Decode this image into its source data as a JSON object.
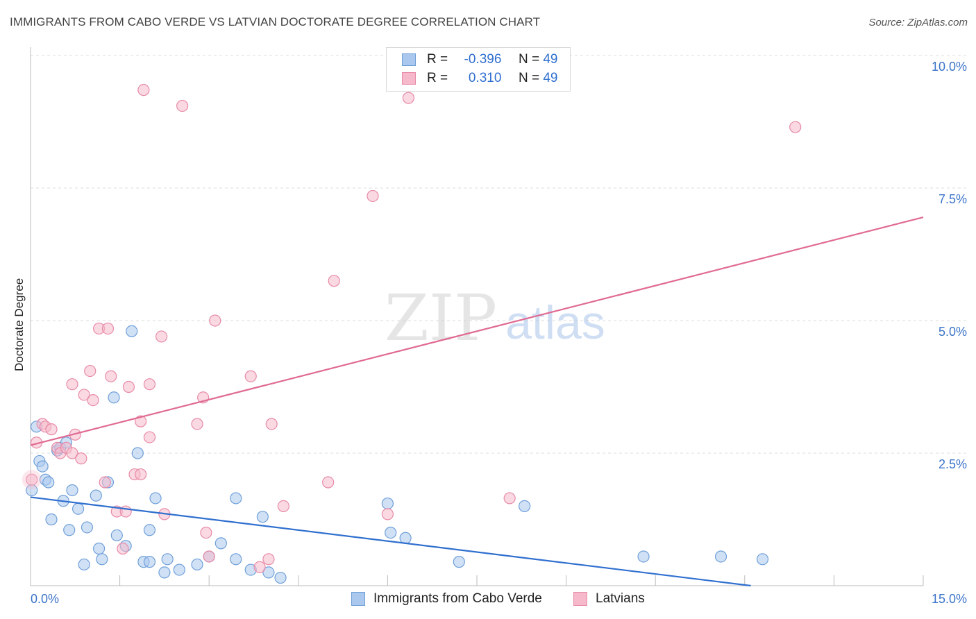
{
  "header": {
    "title": "IMMIGRANTS FROM CABO VERDE VS LATVIAN DOCTORATE DEGREE CORRELATION CHART",
    "source": "Source: ZipAtlas.com"
  },
  "watermark": {
    "zip": "ZIP",
    "atlas": "atlas"
  },
  "legend": {
    "rows": [
      {
        "r_label": "R =",
        "r_value": "-0.396",
        "n_label": "N =",
        "n_value": "49"
      },
      {
        "r_label": "R =",
        "r_value": "0.310",
        "n_label": "N =",
        "n_value": "49"
      }
    ]
  },
  "colors": {
    "blue_fill": "#aac8ee",
    "blue_stroke": "#6f9fd8",
    "blue_line": "#2f6fcf",
    "pink_fill": "#f5b9cb",
    "pink_stroke": "#e88aa7",
    "pink_line": "#e06a92",
    "tick_text": "#3b74c9",
    "grid": "#dcdcdc"
  },
  "chart_data": {
    "type": "scatter",
    "title": "IMMIGRANTS FROM CABO VERDE VS LATVIAN DOCTORATE DEGREE CORRELATION CHART",
    "xlabel": "",
    "ylabel": "Doctorate Degree",
    "xlim": [
      0,
      15
    ],
    "ylim": [
      0,
      10
    ],
    "x_tick_labels": [
      "0.0%",
      "15.0%"
    ],
    "y_ticks": [
      2.5,
      5.0,
      7.5,
      10.0
    ],
    "y_tick_labels": [
      "2.5%",
      "5.0%",
      "7.5%",
      "10.0%"
    ],
    "grid": true,
    "legend_position": "top-center",
    "series": [
      {
        "name": "Immigrants from Cabo Verde",
        "color": "blue",
        "r": -0.396,
        "n": 49,
        "trend": {
          "x": [
            0,
            15
          ],
          "y": [
            1.67,
            -0.4
          ]
        },
        "points": [
          [
            0.02,
            1.8
          ],
          [
            0.1,
            3.0
          ],
          [
            0.15,
            2.35
          ],
          [
            0.2,
            2.25
          ],
          [
            0.25,
            2.0
          ],
          [
            0.3,
            1.95
          ],
          [
            0.35,
            1.25
          ],
          [
            0.45,
            2.55
          ],
          [
            0.5,
            2.6
          ],
          [
            0.55,
            1.6
          ],
          [
            0.6,
            2.7
          ],
          [
            0.65,
            1.05
          ],
          [
            0.7,
            1.8
          ],
          [
            0.8,
            1.45
          ],
          [
            0.9,
            0.4
          ],
          [
            0.95,
            1.1
          ],
          [
            1.1,
            1.7
          ],
          [
            1.15,
            0.7
          ],
          [
            1.2,
            0.5
          ],
          [
            1.3,
            1.95
          ],
          [
            1.4,
            3.55
          ],
          [
            1.45,
            0.95
          ],
          [
            1.6,
            0.75
          ],
          [
            1.7,
            4.8
          ],
          [
            1.8,
            2.5
          ],
          [
            1.9,
            0.45
          ],
          [
            2.0,
            0.45
          ],
          [
            2.0,
            1.05
          ],
          [
            2.1,
            1.65
          ],
          [
            2.25,
            0.25
          ],
          [
            2.3,
            0.5
          ],
          [
            2.5,
            0.3
          ],
          [
            2.8,
            0.4
          ],
          [
            3.0,
            0.55
          ],
          [
            3.2,
            0.8
          ],
          [
            3.45,
            0.5
          ],
          [
            3.45,
            1.65
          ],
          [
            3.7,
            0.3
          ],
          [
            3.9,
            1.3
          ],
          [
            4.0,
            0.25
          ],
          [
            4.2,
            0.15
          ],
          [
            6.0,
            1.55
          ],
          [
            6.05,
            1.0
          ],
          [
            6.3,
            0.9
          ],
          [
            7.2,
            0.45
          ],
          [
            8.3,
            1.5
          ],
          [
            10.3,
            0.55
          ],
          [
            11.6,
            0.55
          ],
          [
            12.3,
            0.5
          ]
        ]
      },
      {
        "name": "Latvians",
        "color": "pink",
        "r": 0.31,
        "n": 49,
        "trend": {
          "x": [
            0,
            15
          ],
          "y": [
            2.65,
            6.95
          ]
        },
        "points": [
          [
            0.02,
            2.0
          ],
          [
            0.1,
            2.7
          ],
          [
            0.2,
            3.05
          ],
          [
            0.25,
            3.0
          ],
          [
            0.35,
            2.95
          ],
          [
            0.45,
            2.6
          ],
          [
            0.5,
            2.5
          ],
          [
            0.6,
            2.6
          ],
          [
            0.7,
            2.5
          ],
          [
            0.7,
            3.8
          ],
          [
            0.75,
            2.85
          ],
          [
            0.85,
            2.4
          ],
          [
            0.9,
            3.6
          ],
          [
            1.0,
            4.05
          ],
          [
            1.05,
            3.5
          ],
          [
            1.15,
            4.85
          ],
          [
            1.25,
            1.95
          ],
          [
            1.3,
            4.85
          ],
          [
            1.35,
            3.95
          ],
          [
            1.45,
            1.4
          ],
          [
            1.55,
            0.7
          ],
          [
            1.6,
            1.4
          ],
          [
            1.65,
            3.75
          ],
          [
            1.75,
            2.1
          ],
          [
            1.85,
            2.1
          ],
          [
            1.85,
            3.1
          ],
          [
            1.9,
            9.35
          ],
          [
            2.0,
            3.8
          ],
          [
            2.0,
            2.8
          ],
          [
            2.2,
            4.7
          ],
          [
            2.25,
            1.35
          ],
          [
            2.55,
            9.05
          ],
          [
            2.8,
            3.05
          ],
          [
            2.9,
            3.55
          ],
          [
            2.95,
            1.0
          ],
          [
            3.0,
            0.55
          ],
          [
            3.1,
            5.0
          ],
          [
            3.7,
            3.95
          ],
          [
            3.85,
            0.35
          ],
          [
            4.0,
            0.5
          ],
          [
            4.05,
            3.05
          ],
          [
            4.25,
            1.5
          ],
          [
            5.0,
            1.95
          ],
          [
            5.1,
            5.75
          ],
          [
            5.75,
            7.35
          ],
          [
            6.0,
            1.35
          ],
          [
            6.35,
            9.2
          ],
          [
            8.05,
            1.65
          ],
          [
            12.85,
            8.65
          ]
        ]
      }
    ]
  },
  "bottom_legend": {
    "items": [
      {
        "label": "Immigrants from Cabo Verde",
        "color": "blue"
      },
      {
        "label": "Latvians",
        "color": "pink"
      }
    ]
  }
}
